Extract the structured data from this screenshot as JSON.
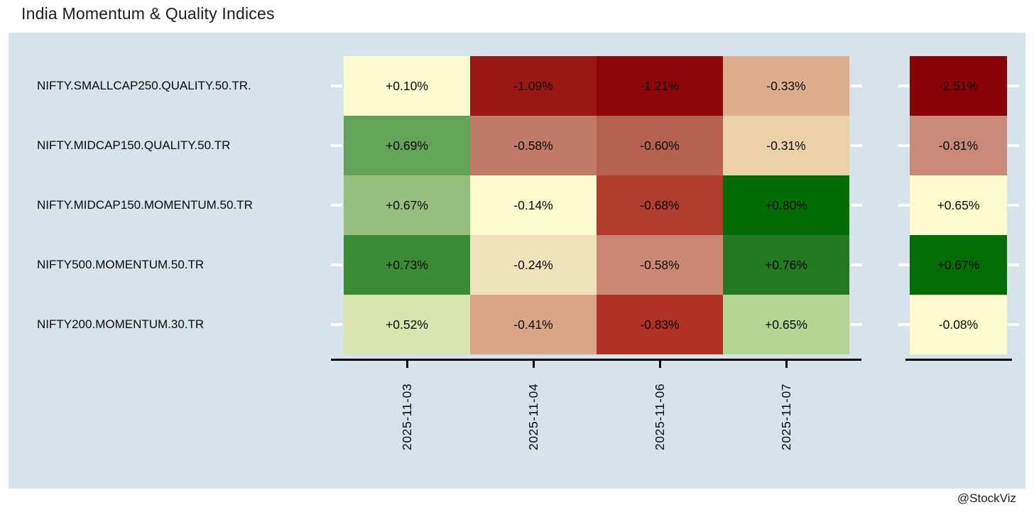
{
  "title": "India Momentum & Quality Indices",
  "watermark": "@StockViz",
  "colors": {
    "page_bg": "#FFFFFF",
    "panel_bg": "#D6E3EB",
    "axis_line": "#000000",
    "axis_tick": "#000000",
    "row_tick": "#FFFFFF",
    "cell_text": "#0A0A0A",
    "title_text": "#1C1C1C"
  },
  "chart_data": {
    "type": "heatmap",
    "title": "India Momentum & Quality Indices",
    "rows": [
      "NIFTY.SMALLCAP250.QUALITY.50.TR.",
      "NIFTY.MIDCAP150.QUALITY.50.TR",
      "NIFTY.MIDCAP150.MOMENTUM.50.TR",
      "NIFTY500.MOMENTUM.50.TR",
      "NIFTY200.MOMENTUM.30.TR"
    ],
    "columns": [
      "2025-11-03",
      "2025-11-04",
      "2025-11-06",
      "2025-11-07"
    ],
    "values": [
      [
        0.1,
        -1.09,
        -1.21,
        -0.33
      ],
      [
        0.69,
        -0.58,
        -0.6,
        -0.31
      ],
      [
        0.67,
        -0.14,
        -0.68,
        0.8
      ],
      [
        0.73,
        -0.24,
        -0.58,
        0.76
      ],
      [
        0.52,
        -0.41,
        -0.83,
        0.65
      ]
    ],
    "labels": [
      [
        "+0.10%",
        "-1.09%",
        "-1.21%",
        "-0.33%"
      ],
      [
        "+0.69%",
        "-0.58%",
        "-0.60%",
        "-0.31%"
      ],
      [
        "+0.67%",
        "-0.14%",
        "-0.68%",
        "+0.80%"
      ],
      [
        "+0.73%",
        "-0.24%",
        "-0.58%",
        "+0.76%"
      ],
      [
        "+0.52%",
        "-0.41%",
        "-0.83%",
        "+0.65%"
      ]
    ],
    "cell_colors": [
      [
        "#FDFBCF",
        "#9A1713",
        "#8E050A",
        "#DDAE8D"
      ],
      [
        "#64A458",
        "#C07A67",
        "#B5614F",
        "#ECD0A8"
      ],
      [
        "#96BE7E",
        "#FDFACE",
        "#B13C30",
        "#046C04"
      ],
      [
        "#3A8A36",
        "#F0E3BB",
        "#CA8773",
        "#247822"
      ],
      [
        "#D9E5AE",
        "#D9A586",
        "#B03226",
        "#B3D492"
      ]
    ],
    "summary_column": {
      "values": [
        -2.51,
        -0.81,
        0.65,
        0.67,
        -0.08
      ],
      "labels": [
        "-2.51%",
        "-0.81%",
        "+0.65%",
        "+0.67%",
        "-0.08%"
      ],
      "colors": [
        "#8A0309",
        "#C98A79",
        "#FDFACD",
        "#056D05",
        "#FDFACD"
      ]
    },
    "legend_position": "none",
    "grid": false
  }
}
